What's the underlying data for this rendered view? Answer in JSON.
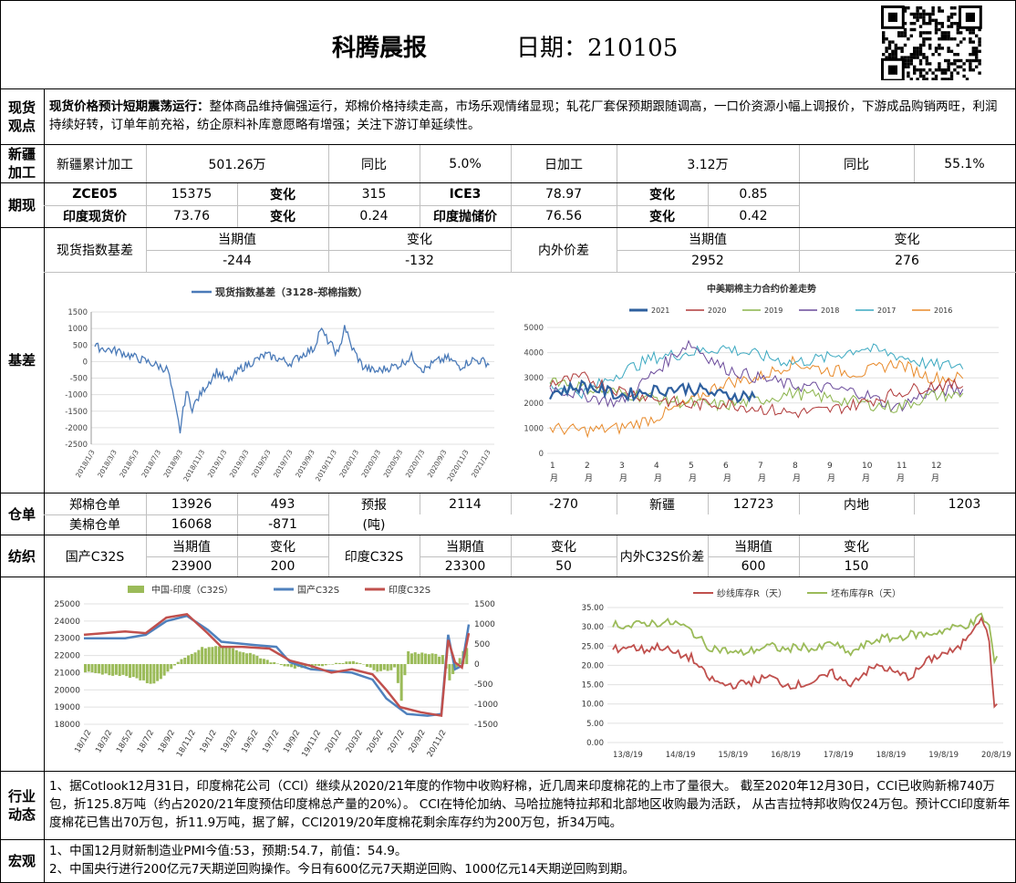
{
  "header": {
    "title": "科腾晨报",
    "date_label": "日期：210105"
  },
  "spot": {
    "label_1": "现货",
    "label_2": "观点",
    "headline": "现货价格预计短期震荡运行：",
    "text": "整体商品维持偏强运行，郑棉价格持续走高，市场乐观情绪显现；轧花厂套保预期跟随调高，一口价资源小幅上调报价，下游成品购销两旺，利润持续好转，订单年前充裕，纺企原料补库意愿略有增强；关注下游订单延续性。"
  },
  "xinjiang": {
    "label_1": "新疆",
    "label_2": "加工",
    "cells": [
      "新疆累计加工",
      "501.26万",
      "同比",
      "5.0%",
      "日加工",
      "3.12万",
      "同比",
      "55.1%"
    ]
  },
  "futures": {
    "label": "期现",
    "row1": [
      "ZCE05",
      "15375",
      "变化",
      "315",
      "ICE3",
      "78.97",
      "变化",
      "0.85"
    ],
    "row2": [
      "印度现货价",
      "73.76",
      "变化",
      "0.24",
      "印度抛储价",
      "76.56",
      "变化",
      "0.42"
    ]
  },
  "basis": {
    "label": "基差",
    "row1": [
      "现货指数基差",
      "当期值",
      "变化",
      "内外价差",
      "当期值",
      "变化"
    ],
    "row2": [
      "-244",
      "-132",
      "2952",
      "276"
    ]
  },
  "chart_spot_basis": {
    "type": "line",
    "legend": "现货指数基差（3128-郑棉指数）",
    "y_ticks": [
      "1500",
      "1000",
      "500",
      "0",
      "-500",
      "-1000",
      "-1500",
      "-2000",
      "-2500"
    ],
    "x_ticks": [
      "2018/1/3",
      "2018/3/3",
      "2018/5/3",
      "2018/7/3",
      "2018/9/3",
      "2018/11/3",
      "2019/1/3",
      "2019/3/3",
      "2019/5/3",
      "2019/7/3",
      "2019/9/3",
      "2019/11/3",
      "2020/1/3",
      "2020/3/3",
      "2020/5/3",
      "2020/7/3",
      "2020/9/3",
      "2020/11/3",
      "2021/1/3"
    ],
    "color": "#4a7ab8"
  },
  "chart_spread": {
    "type": "line",
    "title": "中美期棉主力合约价差走势",
    "series": [
      {
        "name": "2021",
        "color": "#2e5f9e"
      },
      {
        "name": "2020",
        "color": "#b03a3a"
      },
      {
        "name": "2019",
        "color": "#8ab34a"
      },
      {
        "name": "2018",
        "color": "#6a4a9a"
      },
      {
        "name": "2017",
        "color": "#3aa8c0"
      },
      {
        "name": "2016",
        "color": "#e88a2a"
      }
    ],
    "y_ticks": [
      "5000",
      "4000",
      "3000",
      "2000",
      "1000",
      "0"
    ],
    "x_ticks": [
      "1",
      "2",
      "3",
      "4",
      "5",
      "6",
      "7",
      "8",
      "9",
      "10",
      "11",
      "12"
    ],
    "x_unit": "月"
  },
  "warehouse": {
    "label": "仓单",
    "row1": [
      "郑棉仓单",
      "13926",
      "493",
      "预报",
      "2114",
      "-270",
      "新疆",
      "12723",
      "内地",
      "1203"
    ],
    "row2": [
      "美棉仓单",
      "16068",
      "-871",
      "(吨)"
    ]
  },
  "textile": {
    "label": "纺织",
    "row1": [
      "国产C32S",
      "当期值",
      "变化",
      "印度C32S",
      "当期值",
      "变化",
      "内外C32S价差",
      "当期值",
      "变化"
    ],
    "row2": [
      "23900",
      "200",
      "23300",
      "50",
      "600",
      "150"
    ]
  },
  "chart_yarn": {
    "type": "line",
    "legend": [
      "中国-印度（C32S）",
      "国产C32S",
      "印度C32S"
    ],
    "colors": [
      "#9bbb59",
      "#4f81bd",
      "#c0504d"
    ],
    "y_left": [
      "25000",
      "24000",
      "23000",
      "22000",
      "21000",
      "20000",
      "19000",
      "18000"
    ],
    "y_right": [
      "1500",
      "1000",
      "500",
      "0",
      "-500",
      "-1000",
      "-1500"
    ],
    "x_ticks": [
      "18/1/2",
      "18/3/2",
      "18/5/2",
      "18/7/2",
      "18/9/2",
      "18/11/2",
      "19/1/2",
      "19/3/2",
      "19/5/2",
      "19/7/2",
      "19/9/2",
      "19/11/2",
      "20/1/2",
      "20/3/2",
      "20/5/2",
      "20/7/2",
      "20/9/2",
      "20/11/2"
    ]
  },
  "chart_inventory": {
    "type": "line",
    "legend": [
      "纱线库存R（天）",
      "坯布库存R（天）"
    ],
    "colors": [
      "#c0504d",
      "#9bbb59"
    ],
    "y_ticks": [
      "35.00",
      "30.00",
      "25.00",
      "20.00",
      "15.00",
      "10.00",
      "5.00",
      "0.00"
    ],
    "x_ticks": [
      "13/8/19",
      "14/8/19",
      "15/8/19",
      "16/8/19",
      "17/8/19",
      "18/8/19",
      "19/8/19",
      "20/8/19"
    ]
  },
  "industry": {
    "label_1": "行业",
    "label_2": "动态",
    "text": "1、据Cotlook12月31日，印度棉花公司（CCI）继续从2020/21年度的作物中收购籽棉，近几周来印度棉花的上市了量很大。 截至2020年12月30日，CCI已收购新棉740万包，折125.8万吨（约占2020/21年度预估印度棉总产量的20%）。 CCI在特伦加纳、马哈拉施特拉邦和北部地区收购最为活跃， 从古吉拉特邦收购仅24万包。预计CCI印度新年度棉花已售出70万包，折11.9万吨，据了解，CCI2019/20年度棉花剩余库存约为200万包，折34万吨。"
  },
  "macro": {
    "label": "宏观",
    "line1": "1、中国12月财新制造业PMI今值:53，预期:54.7，前值：54.9。",
    "line2": "2、中国央行进行200亿元7天期逆回购操作。今日有600亿元7天期逆回购、1000亿元14天期逆回购到期。"
  }
}
